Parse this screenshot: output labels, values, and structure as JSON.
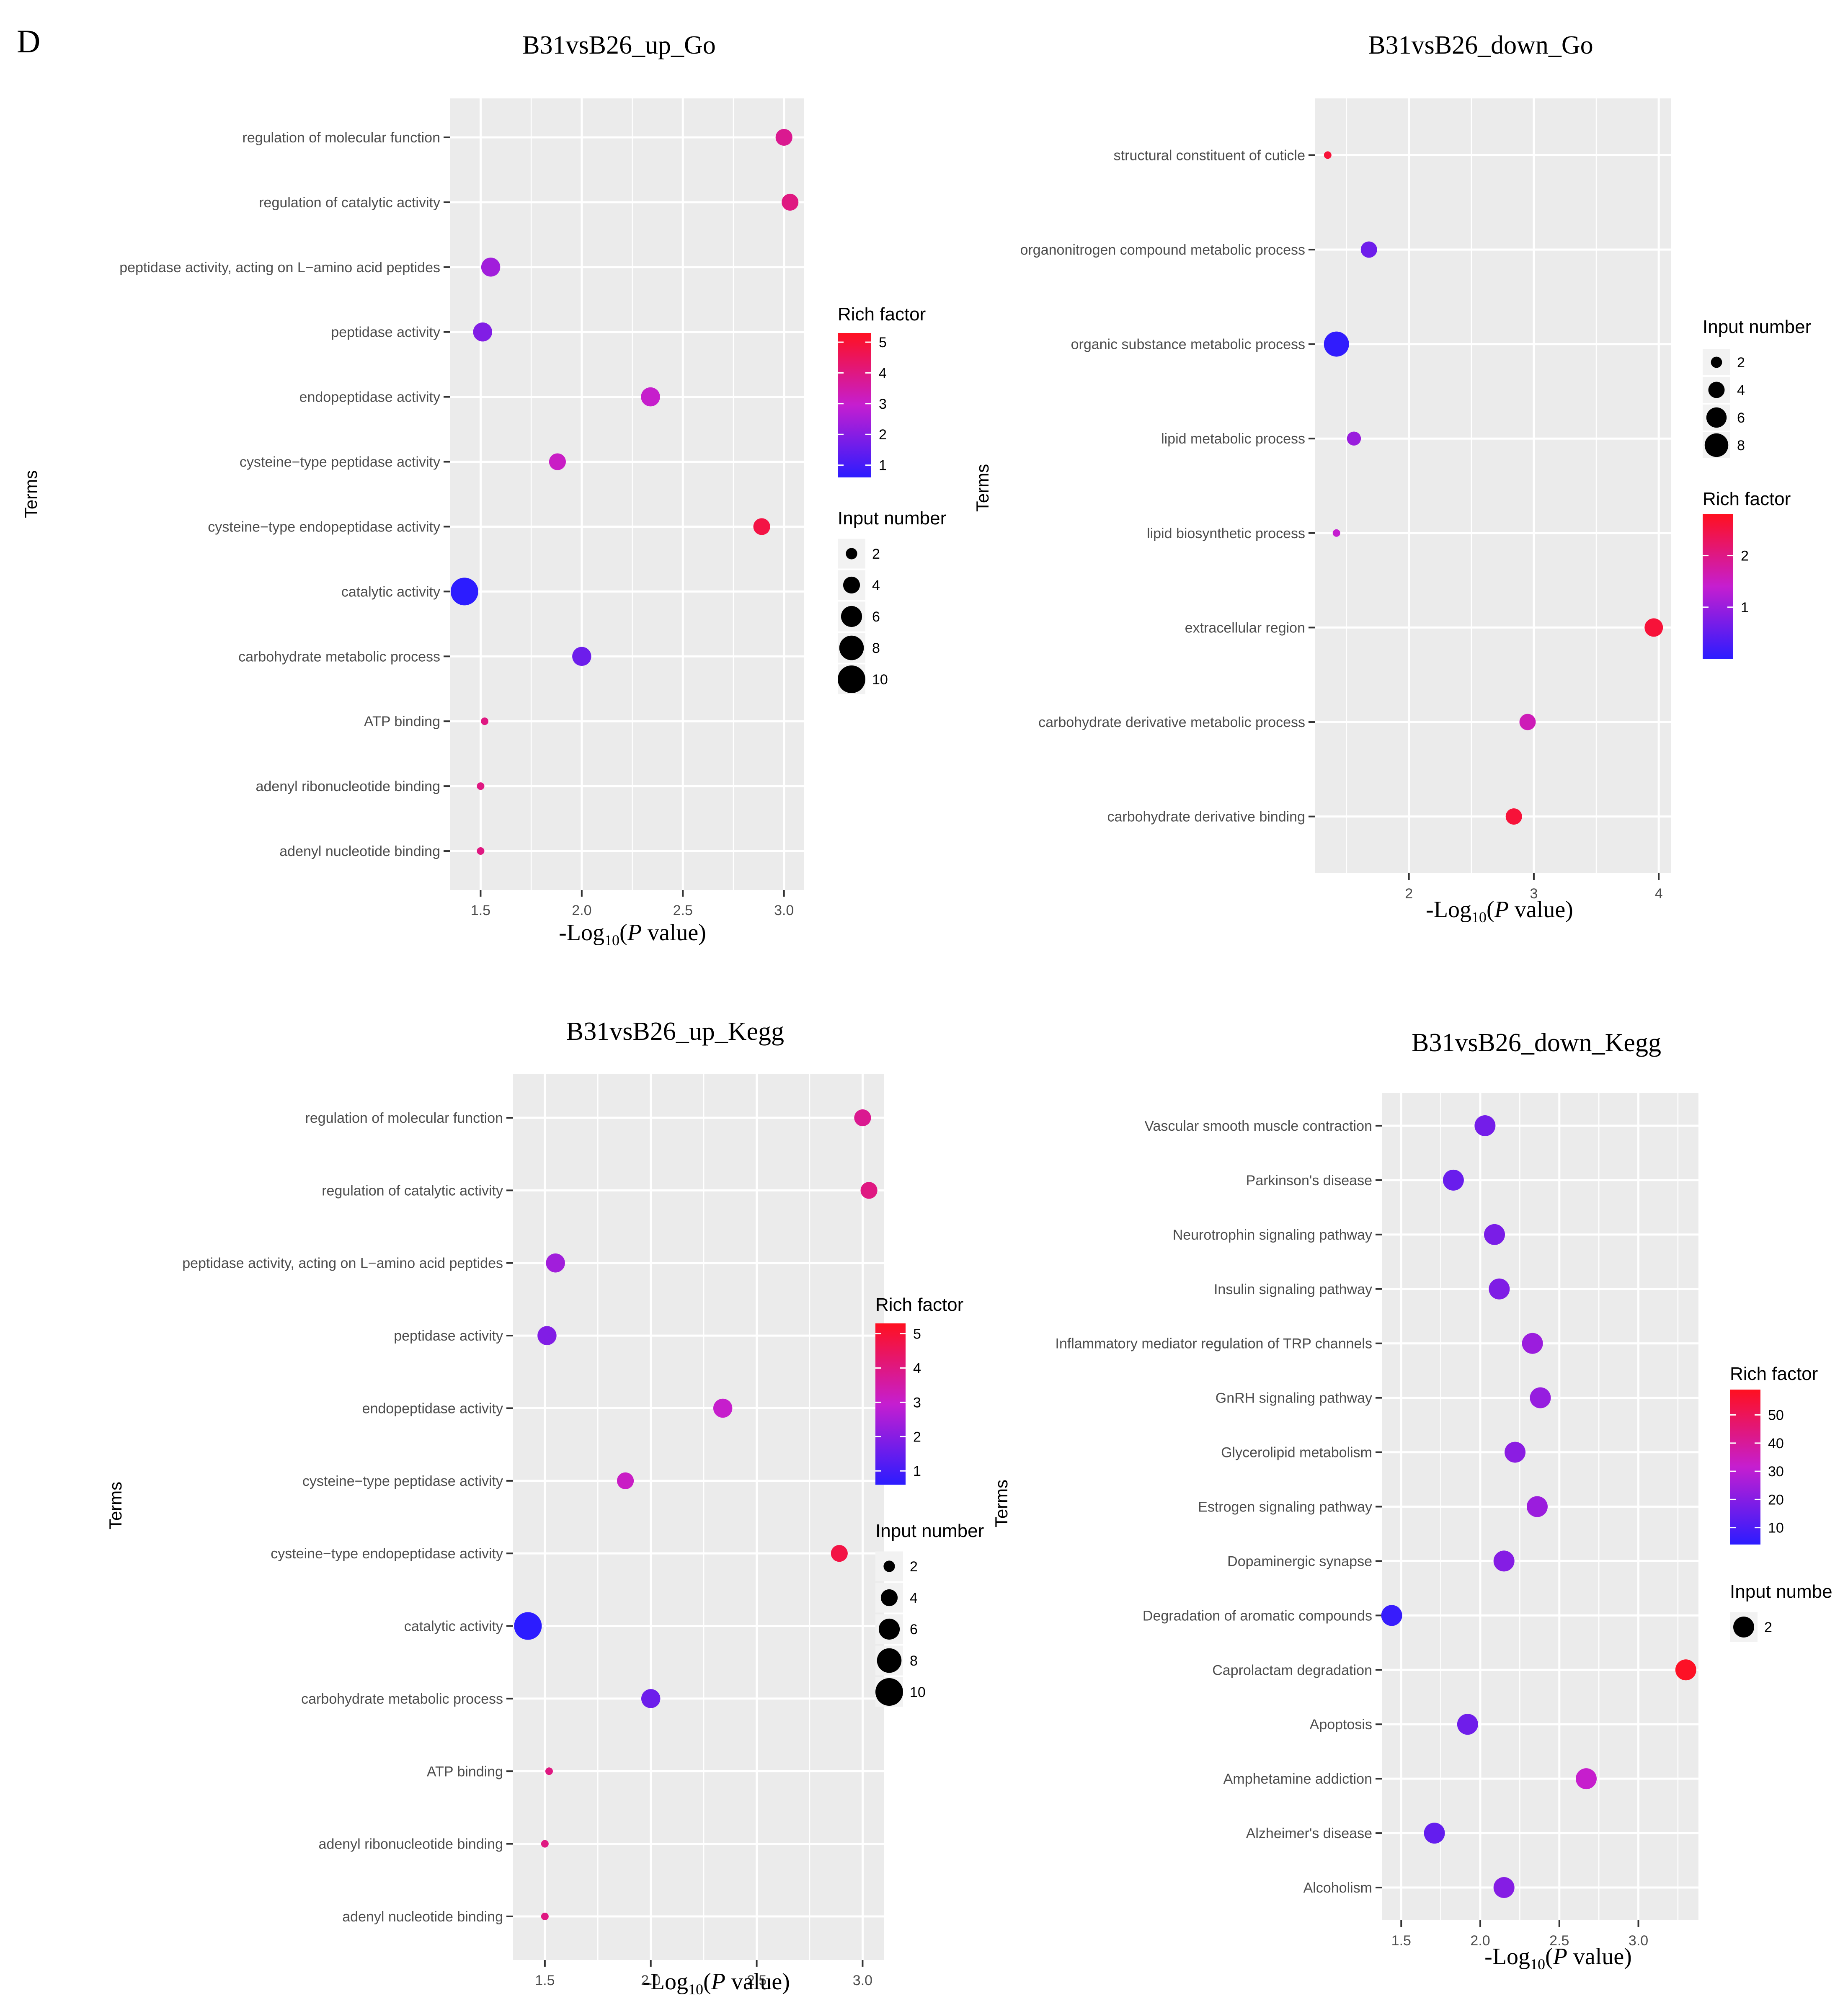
{
  "figure": {
    "panel_label": "D",
    "colors": {
      "panel_bg": "#ebebeb",
      "grid": "#ffffff",
      "low": "#2c1cff",
      "mid": "#c51ed0",
      "high": "#ff1020"
    }
  },
  "chart_data": [
    {
      "id": "up_go",
      "type": "scatter",
      "title": "B31vsB26_up_Go",
      "ylabel": "Terms",
      "xlabel_prefix": "-Log",
      "xlabel_sub": "10",
      "xlabel_open": "(",
      "xlabel_p": "P",
      "xlabel_suffix": " value)",
      "xlim": [
        1.35,
        3.1
      ],
      "xticks": [
        1.5,
        2.0,
        2.5,
        3.0
      ],
      "xtick_labels": [
        "1.5",
        "2.0",
        "2.5",
        "3.0"
      ],
      "categories": [
        "regulation of molecular function",
        "regulation of catalytic activity",
        "peptidase activity, acting on L−amino acid peptides",
        "peptidase activity",
        "endopeptidase activity",
        "cysteine−type peptidase activity",
        "cysteine−type endopeptidase activity",
        "catalytic activity",
        "carbohydrate metabolic process",
        "ATP binding",
        "adenyl ribonucleotide binding",
        "adenyl nucleotide binding"
      ],
      "x": [
        3.0,
        3.03,
        1.55,
        1.51,
        2.34,
        1.88,
        2.89,
        1.42,
        2.0,
        1.52,
        1.5,
        1.5
      ],
      "input_number": [
        4,
        4,
        5,
        5,
        5,
        4,
        4,
        10,
        5,
        1,
        1,
        1
      ],
      "rich_factor": [
        3.8,
        4.0,
        2.4,
        1.9,
        3.0,
        3.1,
        4.8,
        0.5,
        1.6,
        4.0,
        4.0,
        4.0
      ],
      "color_legend": {
        "title": "Rich factor",
        "min": 0.6,
        "max": 5.3,
        "ticks": [
          1,
          2,
          3,
          4,
          5
        ],
        "tick_labels": [
          "1",
          "2",
          "3",
          "4",
          "5"
        ]
      },
      "size_legend": {
        "title": "Input number",
        "values": [
          2,
          4,
          6,
          8,
          10
        ],
        "labels": [
          "2",
          "4",
          "6",
          "8",
          "10"
        ]
      }
    },
    {
      "id": "down_go",
      "type": "scatter",
      "title": "B31vsB26_down_Go",
      "ylabel": "Terms",
      "xlabel_prefix": "-Log",
      "xlabel_sub": "10",
      "xlabel_open": "(",
      "xlabel_p": "P",
      "xlabel_suffix": " value)",
      "xlim": [
        1.25,
        4.1
      ],
      "xticks": [
        2,
        3,
        4
      ],
      "xtick_labels": [
        "2",
        "3",
        "4"
      ],
      "categories": [
        "structural constituent of cuticle",
        "organonitrogen compound metabolic process",
        "organic substance metabolic process",
        "lipid metabolic process",
        "lipid biosynthetic process",
        "extracellular region",
        "carbohydrate derivative metabolic process",
        "carbohydrate derivative binding"
      ],
      "x": [
        1.35,
        1.68,
        1.42,
        1.56,
        1.42,
        3.96,
        2.95,
        2.84
      ],
      "input_number": [
        1,
        4,
        9,
        3,
        1,
        5,
        4,
        4
      ],
      "rich_factor": [
        2.6,
        0.6,
        0.05,
        1.0,
        1.4,
        2.6,
        1.6,
        2.6
      ],
      "size_legend": {
        "title": "Input number",
        "values": [
          2,
          4,
          6,
          8
        ],
        "labels": [
          "2",
          "4",
          "6",
          "8"
        ]
      },
      "color_legend": {
        "title": "Rich factor",
        "min": 0.0,
        "max": 2.8,
        "ticks": [
          1,
          2
        ],
        "tick_labels": [
          "1",
          "2"
        ]
      }
    },
    {
      "id": "up_kegg",
      "type": "scatter",
      "title": "B31vsB26_up_Kegg",
      "ylabel": "Terms",
      "xlabel_prefix": "-Log",
      "xlabel_sub": "10",
      "xlabel_open": "(",
      "xlabel_p": "P",
      "xlabel_suffix": " value)",
      "xlim": [
        1.35,
        3.1
      ],
      "xticks": [
        1.5,
        2.0,
        2.5,
        3.0
      ],
      "xtick_labels": [
        "1.5",
        "2.0",
        "2.5",
        "3.0"
      ],
      "categories": [
        "regulation of molecular function",
        "regulation of catalytic activity",
        "peptidase activity, acting on L−amino acid peptides",
        "peptidase activity",
        "endopeptidase activity",
        "cysteine−type peptidase activity",
        "cysteine−type endopeptidase activity",
        "catalytic activity",
        "carbohydrate metabolic process",
        "ATP binding",
        "adenyl ribonucleotide binding",
        "adenyl nucleotide binding"
      ],
      "x": [
        3.0,
        3.03,
        1.55,
        1.51,
        2.34,
        1.88,
        2.89,
        1.42,
        2.0,
        1.52,
        1.5,
        1.5
      ],
      "input_number": [
        4,
        4,
        5,
        5,
        5,
        4,
        4,
        10,
        5,
        1,
        1,
        1
      ],
      "rich_factor": [
        3.8,
        4.0,
        2.4,
        1.9,
        3.0,
        3.1,
        4.8,
        0.5,
        1.6,
        4.0,
        4.0,
        4.0
      ],
      "color_legend": {
        "title": "Rich factor",
        "min": 0.6,
        "max": 5.3,
        "ticks": [
          1,
          2,
          3,
          4,
          5
        ],
        "tick_labels": [
          "1",
          "2",
          "3",
          "4",
          "5"
        ]
      },
      "size_legend": {
        "title": "Input number",
        "values": [
          2,
          4,
          6,
          8,
          10
        ],
        "labels": [
          "2",
          "4",
          "6",
          "8",
          "10"
        ]
      }
    },
    {
      "id": "down_kegg",
      "type": "scatter",
      "title": "B31vsB26_down_Kegg",
      "ylabel": "Terms",
      "xlabel_prefix": "-Log",
      "xlabel_sub": "10",
      "xlabel_open": "(",
      "xlabel_p": "P",
      "xlabel_suffix": " value)",
      "xlim": [
        1.38,
        3.38
      ],
      "xticks": [
        1.5,
        2.0,
        2.5,
        3.0
      ],
      "xtick_labels": [
        "1.5",
        "2.0",
        "2.5",
        "3.0"
      ],
      "categories": [
        "Vascular smooth muscle contraction",
        "Parkinson's disease",
        "Neurotrophin signaling pathway",
        "Insulin signaling pathway",
        "Inflammatory mediator regulation of TRP channels",
        "GnRH signaling pathway",
        "Glycerolipid metabolism",
        "Estrogen signaling pathway",
        "Dopaminergic synapse",
        "Degradation of aromatic compounds",
        "Caprolactam degradation",
        "Apoptosis",
        "Amphetamine addiction",
        "Alzheimer's disease",
        "Alcoholism"
      ],
      "x": [
        2.03,
        1.83,
        2.09,
        2.12,
        2.33,
        2.38,
        2.22,
        2.36,
        2.15,
        1.44,
        3.3,
        1.92,
        2.67,
        1.71,
        2.15
      ],
      "input_number": [
        2,
        2,
        2,
        2,
        2,
        2,
        2,
        2,
        2,
        2,
        2,
        2,
        2,
        2,
        2
      ],
      "rich_factor": [
        17,
        15,
        18,
        19,
        24,
        23,
        21,
        24,
        20,
        6,
        58,
        16,
        32,
        14,
        20
      ],
      "color_legend": {
        "title": "Rich factor",
        "min": 4,
        "max": 59,
        "ticks": [
          10,
          20,
          30,
          40,
          50
        ],
        "tick_labels": [
          "10",
          "20",
          "30",
          "40",
          "50"
        ]
      },
      "size_legend": {
        "title": "Input numbe",
        "values": [
          2
        ],
        "labels": [
          "2"
        ]
      }
    }
  ]
}
